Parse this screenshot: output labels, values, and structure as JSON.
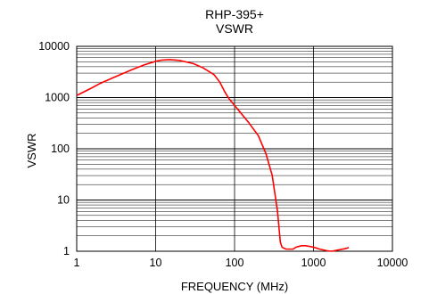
{
  "chart_data": {
    "type": "line",
    "title": "RHP-395+",
    "subtitle": "VSWR",
    "xlabel": "FREQUENCY (MHz)",
    "ylabel": "VSWR",
    "xscale": "log",
    "yscale": "log",
    "xlim": [
      1,
      10000
    ],
    "ylim": [
      1,
      10000
    ],
    "xticks": [
      "1",
      "10",
      "100",
      "1000",
      "10000"
    ],
    "yticks": [
      "1",
      "10",
      "100",
      "1000",
      "10000"
    ],
    "grid": true,
    "legend": "none",
    "line_color": "#ff0000",
    "series": [
      {
        "x": [
          1,
          1.5,
          2,
          3,
          5,
          7,
          10,
          12,
          15,
          20,
          30,
          40,
          55,
          65,
          75,
          85,
          100,
          120,
          150,
          200,
          250,
          300,
          350,
          380,
          400,
          420,
          450,
          500,
          550,
          600,
          700,
          800,
          1000,
          1200,
          1500,
          1700,
          2000,
          2500,
          2800
        ],
        "y": [
          1100,
          1500,
          1900,
          2500,
          3500,
          4300,
          5100,
          5400,
          5500,
          5300,
          4600,
          3800,
          2800,
          2000,
          1300,
          950,
          700,
          500,
          330,
          180,
          80,
          30,
          6,
          1.5,
          1.2,
          1.15,
          1.1,
          1.1,
          1.1,
          1.2,
          1.28,
          1.28,
          1.2,
          1.1,
          1.02,
          1.0,
          1.05,
          1.12,
          1.18
        ]
      }
    ]
  }
}
